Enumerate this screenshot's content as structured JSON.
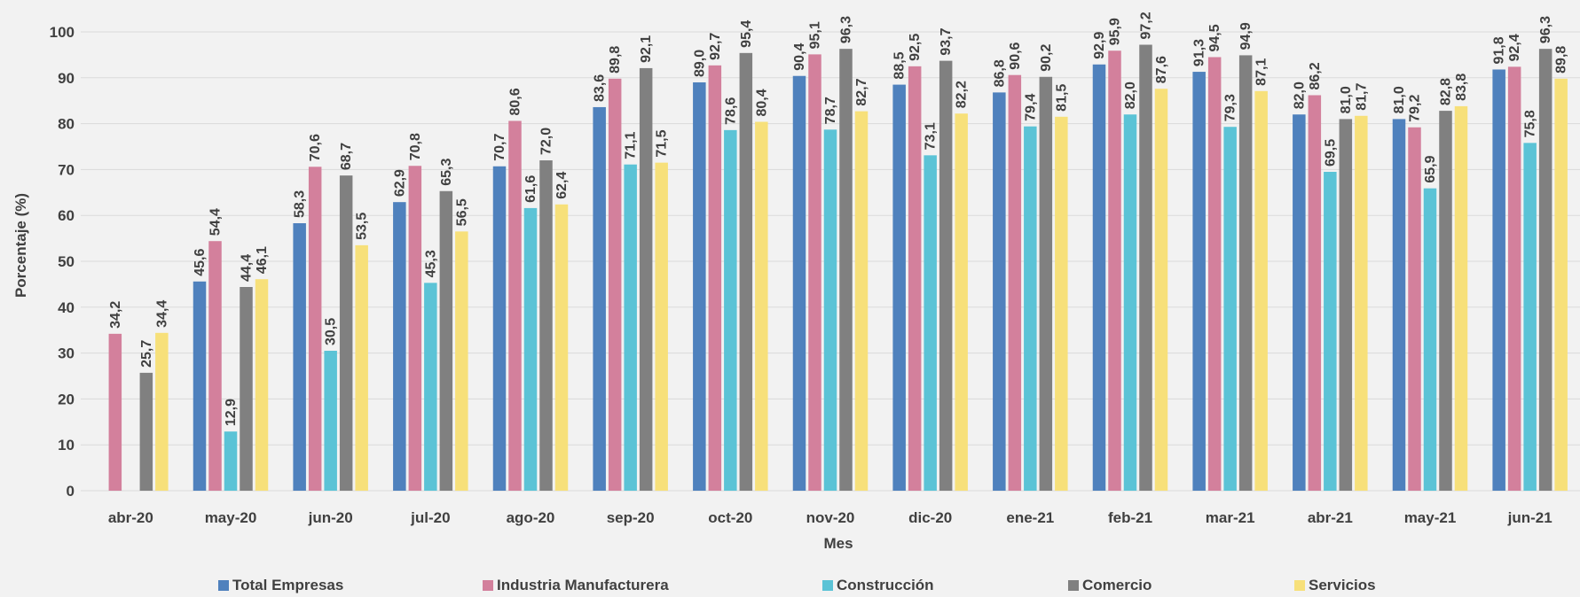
{
  "chart_data": {
    "type": "bar",
    "xlabel": "Mes",
    "ylabel": "Porcentaje (%)",
    "ylim": [
      0,
      100
    ],
    "yticks": [
      0,
      10,
      20,
      30,
      40,
      50,
      60,
      70,
      80,
      90,
      100
    ],
    "grid": true,
    "legend_position": "bottom",
    "categories": [
      "abr-20",
      "may-20",
      "jun-20",
      "jul-20",
      "ago-20",
      "sep-20",
      "oct-20",
      "nov-20",
      "dic-20",
      "ene-21",
      "feb-21",
      "mar-21",
      "abr-21",
      "may-21",
      "jun-21"
    ],
    "series": [
      {
        "name": "Total Empresas",
        "color": "#4f81bd",
        "values": [
          null,
          45.6,
          58.3,
          62.9,
          70.7,
          83.6,
          89.0,
          90.4,
          88.5,
          86.8,
          92.9,
          91.3,
          82.0,
          81.0,
          91.8
        ],
        "labels": [
          "",
          "45,6",
          "58,3",
          "62,9",
          "70,7",
          "83,6",
          "89,0",
          "90,4",
          "88,5",
          "86,8",
          "92,9",
          "91,3",
          "82,0",
          "81,0",
          "91,8"
        ]
      },
      {
        "name": "Industria Manufacturera",
        "color": "#d3809c",
        "values": [
          34.2,
          54.4,
          70.6,
          70.8,
          80.6,
          89.8,
          92.7,
          95.1,
          92.5,
          90.6,
          95.9,
          94.5,
          86.2,
          79.2,
          92.4
        ],
        "labels": [
          "34,2",
          "54,4",
          "70,6",
          "70,8",
          "80,6",
          "89,8",
          "92,7",
          "95,1",
          "92,5",
          "90,6",
          "95,9",
          "94,5",
          "86,2",
          "79,2",
          "92,4"
        ]
      },
      {
        "name": "Construcción",
        "color": "#5bc3d6",
        "values": [
          null,
          12.9,
          30.5,
          45.3,
          61.6,
          71.1,
          78.6,
          78.7,
          73.1,
          79.4,
          82.0,
          79.3,
          69.5,
          65.9,
          75.8
        ],
        "labels": [
          "",
          "12,9",
          "30,5",
          "45,3",
          "61,6",
          "71,1",
          "78,6",
          "78,7",
          "73,1",
          "79,4",
          "82,0",
          "79,3",
          "69,5",
          "65,9",
          "75,8"
        ]
      },
      {
        "name": "Comercio",
        "color": "#808080",
        "values": [
          25.7,
          44.4,
          68.7,
          65.3,
          72.0,
          92.1,
          95.4,
          96.3,
          93.7,
          90.2,
          97.2,
          94.9,
          81.0,
          82.8,
          96.3
        ],
        "labels": [
          "25,7",
          "44,4",
          "68,7",
          "65,3",
          "72,0",
          "92,1",
          "95,4",
          "96,3",
          "93,7",
          "90,2",
          "97,2",
          "94,9",
          "81,0",
          "82,8",
          "96,3"
        ]
      },
      {
        "name": "Servicios",
        "color": "#f7e07a",
        "values": [
          34.4,
          46.1,
          53.5,
          56.5,
          62.4,
          71.5,
          80.4,
          82.7,
          82.2,
          81.5,
          87.6,
          87.1,
          81.7,
          83.8,
          89.8
        ],
        "labels": [
          "34,4",
          "46,1",
          "53,5",
          "56,5",
          "62,4",
          "71,5",
          "80,4",
          "82,7",
          "82,2",
          "81,5",
          "87,6",
          "87,1",
          "81,7",
          "83,8",
          "89,8"
        ]
      }
    ]
  }
}
